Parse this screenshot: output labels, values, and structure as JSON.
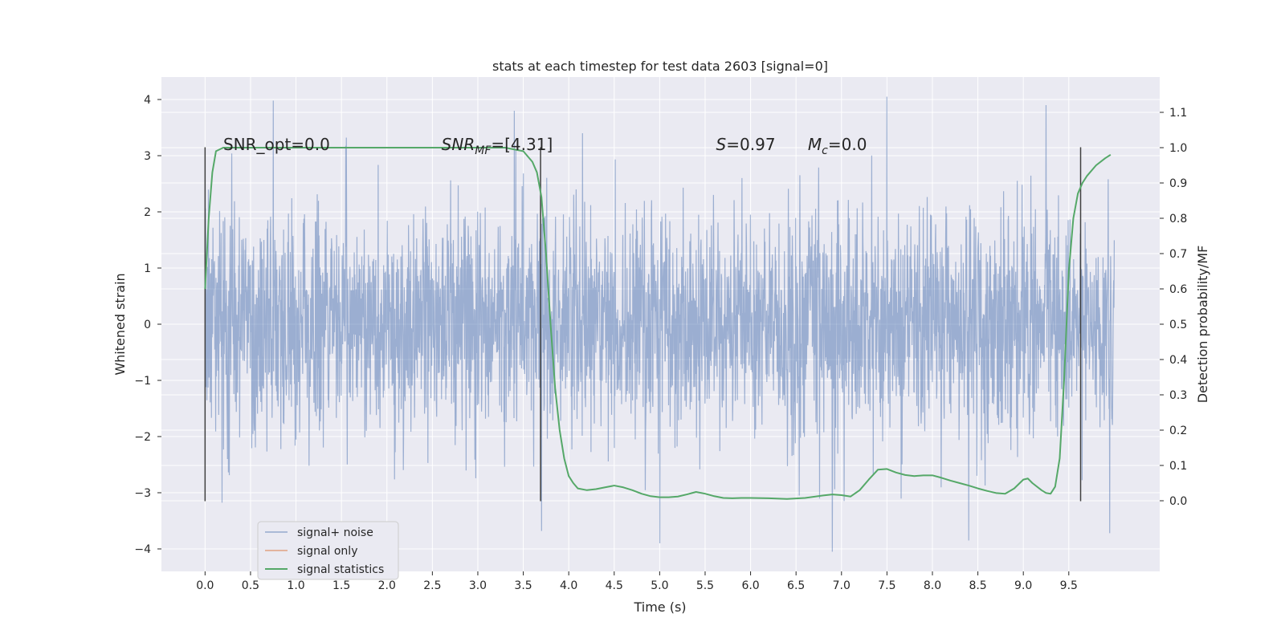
{
  "chart_data": {
    "type": "line",
    "title": "stats at each timestep for test data 2603 [signal=0]",
    "xlabel": "Time (s)",
    "ylabel": "Whitened strain",
    "ylabel_right": "Detection probability/MF",
    "xlim": [
      -0.48,
      10.5
    ],
    "ylim": [
      -4.4,
      4.4
    ],
    "ylim_right": [
      -0.2,
      1.2
    ],
    "x_ticks": [
      0.0,
      0.5,
      1.0,
      1.5,
      2.0,
      2.5,
      3.0,
      3.5,
      4.0,
      4.5,
      5.0,
      5.5,
      6.0,
      6.5,
      7.0,
      7.5,
      8.0,
      8.5,
      9.0,
      9.5
    ],
    "x_tick_labels": [
      "0.0",
      "0.5",
      "1.0",
      "1.5",
      "2.0",
      "2.5",
      "3.0",
      "3.5",
      "4.0",
      "4.5",
      "5.0",
      "5.5",
      "6.0",
      "6.5",
      "7.0",
      "7.5",
      "8.0",
      "8.5",
      "9.0",
      "9.5"
    ],
    "y_ticks": [
      4,
      3,
      2,
      1,
      0,
      -1,
      -2,
      -3,
      -4
    ],
    "y_tick_labels": [
      "4",
      "3",
      "2",
      "1",
      "0",
      "−1",
      "−2",
      "−3",
      "−4"
    ],
    "y_right_ticks": [
      1.1,
      1.0,
      0.9,
      0.8,
      0.7,
      0.6,
      0.5,
      0.4,
      0.3,
      0.2,
      0.1,
      0.0
    ],
    "y_right_tick_labels": [
      "1.1",
      "1.0",
      "0.9",
      "0.8",
      "0.7",
      "0.6",
      "0.5",
      "0.4",
      "0.3",
      "0.2",
      "0.1",
      "0.0"
    ],
    "grid": true,
    "legend_position": "lower-left",
    "series": [
      {
        "name": "signal+ noise",
        "axis": "left",
        "color": "#4c72b0",
        "note": "dense noise trace sampled over 0-10 s",
        "x_range": [
          0.0,
          10.0
        ],
        "typical_min": -3.5,
        "typical_max": 3.5,
        "peaks_max": [
          [
            0.75,
            3.98
          ],
          [
            7.5,
            4.05
          ],
          [
            9.25,
            3.9
          ],
          [
            3.4,
            3.8
          ]
        ],
        "peaks_min": [
          [
            6.9,
            -4.05
          ],
          [
            5.0,
            -3.9
          ],
          [
            8.4,
            -3.85
          ],
          [
            9.95,
            -3.72
          ],
          [
            3.7,
            -3.68
          ]
        ]
      },
      {
        "name": "signal only",
        "axis": "left",
        "color": "#dd8452",
        "x": [],
        "y": []
      },
      {
        "name": "signal statistics",
        "axis": "right",
        "color": "#55a868",
        "x": [
          0.0,
          0.04,
          0.08,
          0.12,
          0.2,
          0.3,
          0.5,
          1.0,
          2.0,
          3.0,
          3.3,
          3.5,
          3.6,
          3.65,
          3.7,
          3.75,
          3.8,
          3.85,
          3.9,
          3.95,
          4.0,
          4.05,
          4.1,
          4.2,
          4.3,
          4.4,
          4.5,
          4.6,
          4.7,
          4.8,
          4.9,
          5.0,
          5.1,
          5.2,
          5.3,
          5.4,
          5.5,
          5.6,
          5.7,
          5.8,
          5.9,
          6.0,
          6.2,
          6.4,
          6.6,
          6.8,
          6.9,
          7.0,
          7.1,
          7.2,
          7.3,
          7.4,
          7.5,
          7.6,
          7.7,
          7.8,
          7.9,
          8.0,
          8.1,
          8.2,
          8.3,
          8.4,
          8.5,
          8.6,
          8.7,
          8.8,
          8.9,
          9.0,
          9.05,
          9.1,
          9.2,
          9.25,
          9.3,
          9.35,
          9.4,
          9.45,
          9.5,
          9.55,
          9.6,
          9.65,
          9.7,
          9.8,
          9.9,
          9.96
        ],
        "y": [
          0.6,
          0.8,
          0.93,
          0.99,
          1.0,
          1.0,
          1.0,
          1.0,
          1.0,
          1.0,
          1.0,
          0.99,
          0.96,
          0.93,
          0.86,
          0.7,
          0.5,
          0.32,
          0.2,
          0.12,
          0.07,
          0.05,
          0.035,
          0.03,
          0.033,
          0.038,
          0.043,
          0.038,
          0.03,
          0.02,
          0.013,
          0.01,
          0.01,
          0.012,
          0.018,
          0.025,
          0.02,
          0.013,
          0.008,
          0.007,
          0.008,
          0.008,
          0.007,
          0.005,
          0.008,
          0.015,
          0.018,
          0.016,
          0.012,
          0.03,
          0.06,
          0.088,
          0.09,
          0.08,
          0.073,
          0.07,
          0.072,
          0.072,
          0.065,
          0.057,
          0.05,
          0.043,
          0.035,
          0.028,
          0.022,
          0.02,
          0.035,
          0.06,
          0.063,
          0.05,
          0.03,
          0.022,
          0.02,
          0.04,
          0.12,
          0.35,
          0.65,
          0.8,
          0.87,
          0.9,
          0.92,
          0.95,
          0.97,
          0.98
        ]
      }
    ],
    "vertical_lines": [
      0.0,
      3.69,
      9.63
    ],
    "vertical_line_range": [
      -3.15,
      3.15
    ],
    "annotations": [
      {
        "text": "SNR_opt=0.0",
        "x": 0.2,
        "y": 3.1
      },
      {
        "text": "SNR",
        "sub": "MF",
        "suffix": "=[4.31]",
        "italic": true,
        "x": 2.6,
        "y": 3.1
      },
      {
        "text": "S",
        "suffix": "=0.97",
        "italic": true,
        "x": 5.62,
        "y": 3.1
      },
      {
        "text": "M",
        "sub": "c",
        "suffix": "=0.0",
        "italic": true,
        "x": 6.63,
        "y": 3.1
      }
    ]
  },
  "legend": [
    {
      "label": "signal+ noise",
      "color": "#4c72b0"
    },
    {
      "label": "signal only",
      "color": "#dd8452"
    },
    {
      "label": "signal statistics",
      "color": "#55a868"
    }
  ],
  "colors": {
    "axes_bg": "#eaeaf2",
    "grid": "#ffffff",
    "noise": "#4c72b0",
    "signal_only": "#dd8452",
    "statistics": "#55a868",
    "vline": "#404040"
  }
}
